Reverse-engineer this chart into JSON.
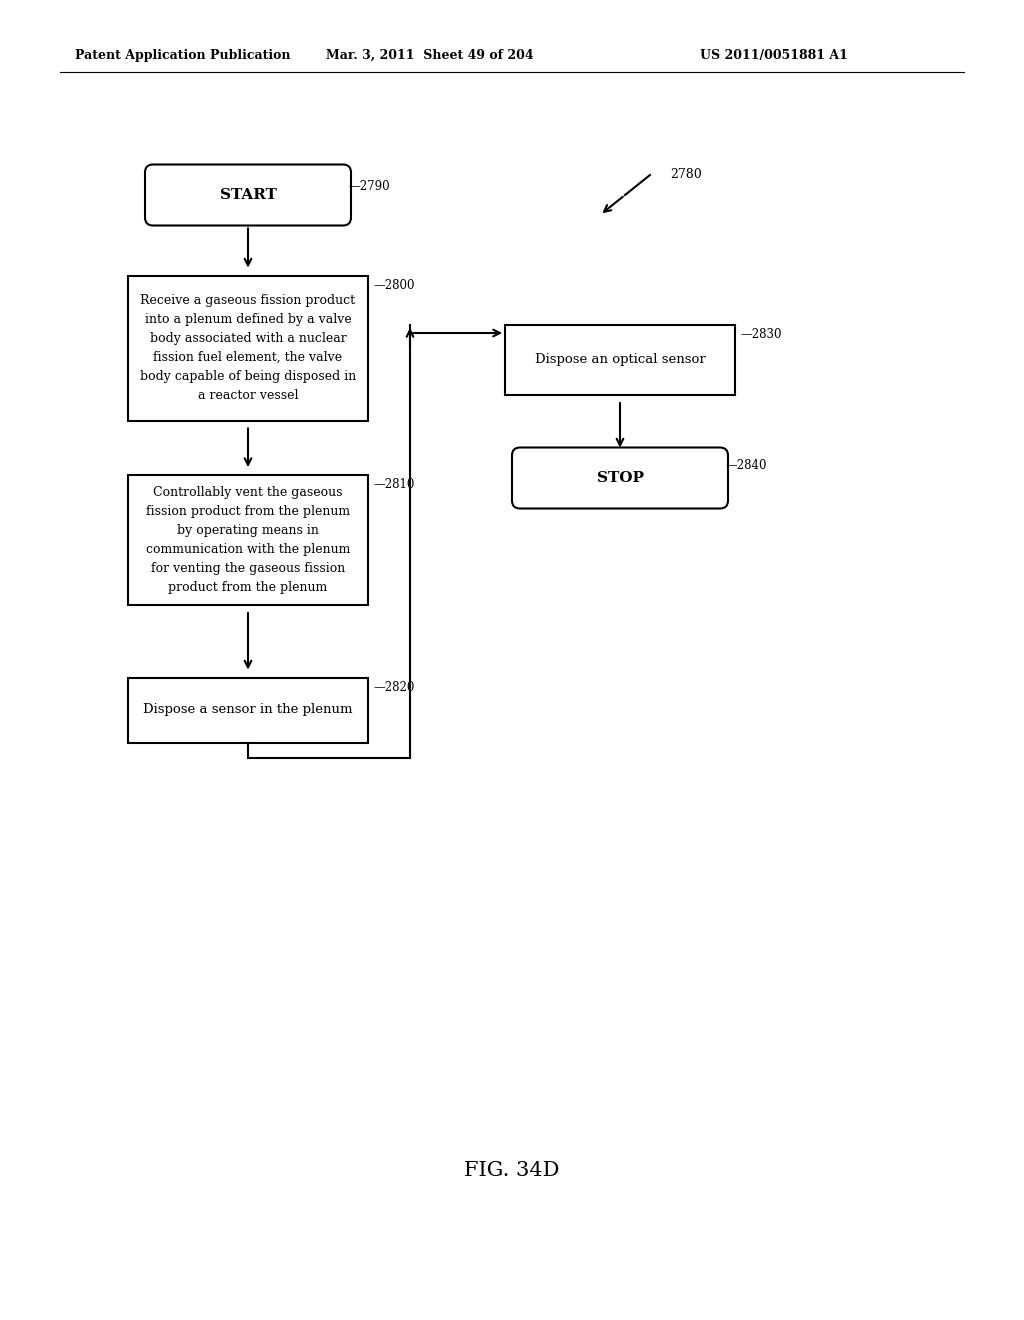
{
  "bg_color": "#ffffff",
  "header_left": "Patent Application Publication",
  "header_mid": "Mar. 3, 2011  Sheet 49 of 204",
  "header_right": "US 2011/0051881 A1",
  "footer_label": "FIG. 34D",
  "start_label": "START",
  "stop_label": "STOP",
  "box2800_text": "Receive a gaseous fission product\ninto a plenum defined by a valve\nbody associated with a nuclear\nfission fuel element, the valve\nbody capable of being disposed in\na reactor vessel",
  "box2810_text": "Controllably vent the gaseous\nfission product from the plenum\nby operating means in\ncommunication with the plenum\nfor venting the gaseous fission\nproduct from the plenum",
  "box2820_text": "Dispose a sensor in the plenum",
  "box2830_text": "Dispose an optical sensor",
  "ref2780": "2780",
  "ref2790": "2790",
  "ref2800": "2800",
  "ref2810": "2810",
  "ref2820": "2820",
  "ref2830": "2830",
  "ref2840": "2840"
}
